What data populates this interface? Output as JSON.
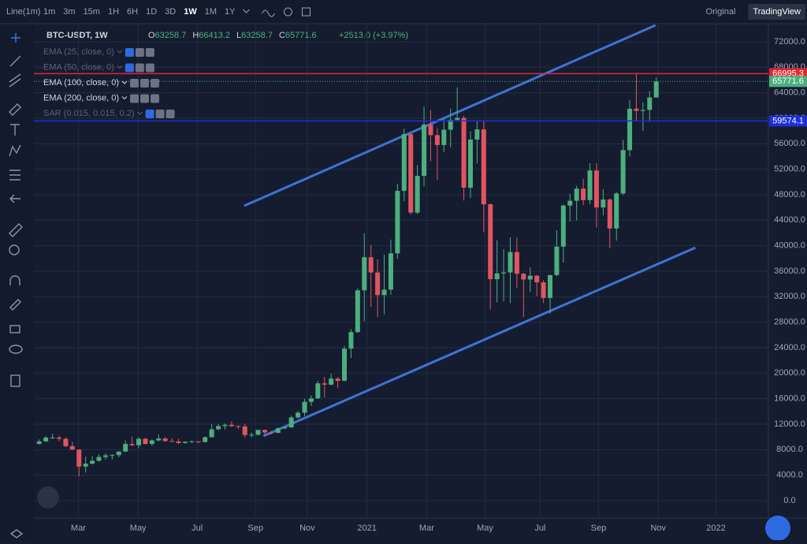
{
  "toolbar": {
    "chart_style": "Line(1m)",
    "intervals": [
      "1m",
      "3m",
      "15m",
      "1H",
      "6H",
      "1D",
      "3D",
      "1W",
      "1M",
      "1Y"
    ],
    "active_interval": 7,
    "views": [
      "Original",
      "TradingView"
    ],
    "active_view": 1
  },
  "chart_data": {
    "type": "candlestick",
    "symbol": "BTC-USDT, 1W",
    "ohlc": [
      {
        "label": "O",
        "value": 63258.7
      },
      {
        "label": "H",
        "value": 66413.2
      },
      {
        "label": "L",
        "value": 63258.7
      },
      {
        "label": "C",
        "value": 65771.6
      }
    ],
    "change": "+2513.0 (+3.97%)",
    "indicators": [
      {
        "name": "EMA (25, close, 0)",
        "hidden": true
      },
      {
        "name": "EMA (50, close, 0)",
        "hidden": true
      },
      {
        "name": "EMA (100, close, 0)",
        "hidden": false
      },
      {
        "name": "EMA (200, close, 0)",
        "hidden": false
      },
      {
        "name": "SAR (0.015, 0.015, 0.2)",
        "hidden": true
      }
    ],
    "up_color": "#4caf7d",
    "down_color": "#e05560",
    "candles": [
      [
        8900,
        9600,
        8800,
        9300
      ],
      [
        9300,
        10100,
        9200,
        9900
      ],
      [
        9900,
        10500,
        9700,
        9900
      ],
      [
        9900,
        10200,
        9300,
        9700
      ],
      [
        9700,
        9950,
        8400,
        8550
      ],
      [
        8550,
        9200,
        8000,
        8000
      ],
      [
        8000,
        8100,
        3800,
        5350
      ],
      [
        5350,
        6900,
        4400,
        5800
      ],
      [
        5800,
        6950,
        5700,
        6250
      ],
      [
        6250,
        7300,
        6150,
        6850
      ],
      [
        6850,
        7450,
        6500,
        7100
      ],
      [
        7100,
        7300,
        6450,
        7150
      ],
      [
        7150,
        7750,
        6800,
        7700
      ],
      [
        7700,
        9450,
        7650,
        8900
      ],
      [
        8900,
        10050,
        8500,
        8700
      ],
      [
        8700,
        9950,
        8200,
        9700
      ],
      [
        9700,
        9850,
        8800,
        8900
      ],
      [
        8900,
        9600,
        8600,
        9450
      ],
      [
        9450,
        10400,
        9300,
        9750
      ],
      [
        9750,
        10000,
        9250,
        9350
      ],
      [
        9350,
        9800,
        9200,
        9300
      ],
      [
        9300,
        9700,
        8900,
        9050
      ],
      [
        9050,
        9300,
        8950,
        9250
      ],
      [
        9250,
        9450,
        9100,
        9300
      ],
      [
        9300,
        9350,
        9000,
        9200
      ],
      [
        9200,
        10100,
        9150,
        9950
      ],
      [
        9950,
        12000,
        9900,
        11200
      ],
      [
        11200,
        12000,
        11000,
        11700
      ],
      [
        11700,
        12100,
        11150,
        11900
      ],
      [
        11900,
        12450,
        11550,
        11700
      ],
      [
        11700,
        11800,
        11250,
        11650
      ],
      [
        11650,
        12050,
        9900,
        10300
      ],
      [
        10300,
        10700,
        9900,
        10350
      ],
      [
        10350,
        11100,
        10200,
        11100
      ],
      [
        11100,
        11150,
        10350,
        10700
      ],
      [
        10700,
        10950,
        10400,
        10650
      ],
      [
        10650,
        11500,
        10550,
        11350
      ],
      [
        11350,
        11700,
        11200,
        11500
      ],
      [
        11500,
        13350,
        11400,
        13050
      ],
      [
        13050,
        14100,
        12900,
        13800
      ],
      [
        13800,
        15950,
        13250,
        15500
      ],
      [
        15500,
        16500,
        14850,
        16050
      ],
      [
        16050,
        18800,
        15950,
        18400
      ],
      [
        18400,
        19450,
        16200,
        18200
      ],
      [
        18200,
        19900,
        18100,
        19150
      ],
      [
        19150,
        19400,
        17650,
        18800
      ],
      [
        18800,
        24300,
        18750,
        23850
      ],
      [
        23850,
        26900,
        22400,
        26450
      ],
      [
        26450,
        33300,
        26300,
        33000
      ],
      [
        33000,
        41950,
        28150,
        38200
      ],
      [
        38200,
        40100,
        30400,
        35800
      ],
      [
        35800,
        37850,
        28800,
        32250
      ],
      [
        32250,
        38600,
        29250,
        33100
      ],
      [
        33100,
        40950,
        32300,
        38800
      ],
      [
        38800,
        49700,
        37950,
        48600
      ],
      [
        48600,
        58350,
        47000,
        57500
      ],
      [
        57500,
        57550,
        44900,
        45200
      ],
      [
        45200,
        52650,
        44950,
        50950
      ],
      [
        50950,
        61800,
        49300,
        59000
      ],
      [
        59000,
        61300,
        53250,
        57350
      ],
      [
        57350,
        58400,
        50300,
        55800
      ],
      [
        55800,
        60000,
        54700,
        58200
      ],
      [
        58200,
        61500,
        55450,
        59750
      ],
      [
        59750,
        64850,
        59500,
        60050
      ],
      [
        60050,
        60400,
        47100,
        49100
      ],
      [
        49100,
        57950,
        47500,
        56650
      ],
      [
        56650,
        59500,
        52900,
        58250
      ],
      [
        58250,
        59600,
        42100,
        46500
      ],
      [
        46500,
        46650,
        30000,
        34750
      ],
      [
        34750,
        40850,
        31100,
        35650
      ],
      [
        35650,
        39450,
        31250,
        35800
      ],
      [
        35800,
        41300,
        31000,
        39000
      ],
      [
        39000,
        41300,
        33350,
        35600
      ],
      [
        35600,
        35750,
        28800,
        34700
      ],
      [
        34700,
        36600,
        32700,
        35300
      ],
      [
        35300,
        35400,
        32100,
        34250
      ],
      [
        34250,
        34600,
        31000,
        31800
      ],
      [
        31800,
        35400,
        29300,
        35400
      ],
      [
        35400,
        42400,
        35200,
        39850
      ],
      [
        39850,
        46450,
        37350,
        46300
      ],
      [
        46300,
        48150,
        43800,
        47050
      ],
      [
        47050,
        49400,
        43950,
        48950
      ],
      [
        48950,
        50500,
        46350,
        47150
      ],
      [
        47150,
        52950,
        46500,
        51800
      ],
      [
        51800,
        52950,
        42850,
        46000
      ],
      [
        46000,
        48850,
        44750,
        47250
      ],
      [
        47250,
        47400,
        39600,
        42700
      ],
      [
        42700,
        48450,
        40800,
        48200
      ],
      [
        48200,
        56600,
        47950,
        55000
      ],
      [
        55000,
        62900,
        54000,
        61500
      ],
      [
        61500,
        66995.3,
        59500,
        61150
      ],
      [
        61150,
        62500,
        58000,
        61300
      ],
      [
        61300,
        64250,
        59400,
        63258.7
      ],
      [
        63258.7,
        66413.2,
        63258.7,
        65771.6
      ]
    ],
    "price_lines": [
      {
        "value": 66995.3,
        "color": "#e0262f"
      },
      {
        "value": 59574.1,
        "color": "#1c2fd8"
      }
    ],
    "trend_lines": [
      {
        "points": [
          [
            30.9,
            46260
          ],
          [
            92.9,
            74600
          ]
        ],
        "color": "#3f73d4"
      },
      {
        "points": [
          [
            33.8,
            10140
          ],
          [
            98.9,
            39700
          ]
        ],
        "color": "#3f73d4"
      }
    ],
    "xlim": [
      -0.8,
      109.9
    ],
    "xticks": [
      {
        "value": 5.9,
        "label": "Mar"
      },
      {
        "value": 14.9,
        "label": "May"
      },
      {
        "value": 23.8,
        "label": "Jul"
      },
      {
        "value": 32.6,
        "label": "Sep"
      },
      {
        "value": 40.4,
        "label": "Nov"
      },
      {
        "value": 49.4,
        "label": "2021"
      },
      {
        "value": 58.4,
        "label": "Mar"
      },
      {
        "value": 67.2,
        "label": "May"
      },
      {
        "value": 75.5,
        "label": "Jul"
      },
      {
        "value": 84.3,
        "label": "Sep"
      },
      {
        "value": 93.3,
        "label": "Nov"
      },
      {
        "value": 102,
        "label": "2022"
      }
    ],
    "ylim": [
      -2720,
      74840
    ],
    "yticks": [
      {
        "value": 0,
        "label": "0.0"
      },
      {
        "value": 4000,
        "label": "4000.0"
      },
      {
        "value": 8000,
        "label": "8000.0"
      },
      {
        "value": 12000,
        "label": "12000.0"
      },
      {
        "value": 16000,
        "label": "16000.0"
      },
      {
        "value": 20000,
        "label": "20000.0"
      },
      {
        "value": 24000,
        "label": "24000.0"
      },
      {
        "value": 28000,
        "label": "28000.0"
      },
      {
        "value": 32000,
        "label": "32000.0"
      },
      {
        "value": 36000,
        "label": "36000.0"
      },
      {
        "value": 40000,
        "label": "40000.0"
      },
      {
        "value": 44000,
        "label": "44000.0"
      },
      {
        "value": 48000,
        "label": "48000.0"
      },
      {
        "value": 52000,
        "label": "52000.0"
      },
      {
        "value": 56000,
        "label": "56000.0"
      },
      {
        "value": 60000,
        "label": "60000.0"
      },
      {
        "value": 64000,
        "label": "64000.0"
      },
      {
        "value": 68000,
        "label": "68000.0"
      },
      {
        "value": 72000,
        "label": "72000.0"
      }
    ],
    "grid": true
  }
}
